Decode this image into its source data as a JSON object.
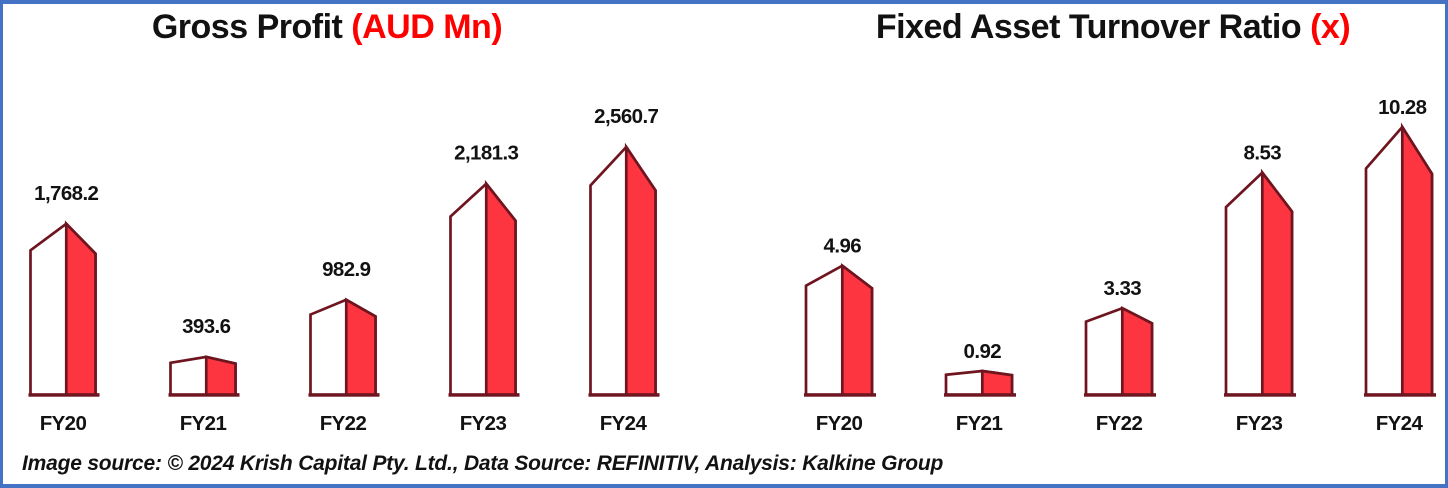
{
  "frame": {
    "border_color": "#4472C4",
    "background": "#FFFFFF"
  },
  "colors": {
    "bar_fill": "#FD3540",
    "bar_front": "#FFFFFF",
    "bar_outline": "#6E1520",
    "title_accent": "#FF0000",
    "text": "#121212"
  },
  "titles": [
    {
      "main": "Gross Profit ",
      "suffix": "(AUD Mn)"
    },
    {
      "main": "Fixed Asset Turnover Ratio ",
      "suffix": "(x)"
    }
  ],
  "footer": {
    "text": "Image source: © 2024 Krish Capital Pty. Ltd., Data Source: REFINITIV, Analysis: Kalkine Group"
  },
  "chart_data": [
    {
      "type": "bar",
      "title": "Gross Profit (AUD Mn)",
      "unit": "AUD Mn",
      "categories": [
        "FY20",
        "FY21",
        "FY22",
        "FY23",
        "FY24"
      ],
      "values": [
        1768.2,
        393.6,
        982.9,
        2181.3,
        2560.7
      ],
      "value_labels": [
        "1,768.2",
        "393.6",
        "982.9",
        "2,181.3",
        "2,560.7"
      ],
      "xlabel": "",
      "ylabel": "",
      "ylim": [
        0,
        2800
      ],
      "grid": false,
      "legend": false,
      "bar_style": "3d peaked column: white front face, red side face, dark maroon outline, data labels above peaks"
    },
    {
      "type": "bar",
      "title": "Fixed Asset Turnover Ratio (x)",
      "unit": "x",
      "categories": [
        "FY20",
        "FY21",
        "FY22",
        "FY23",
        "FY24"
      ],
      "values": [
        4.96,
        0.92,
        3.33,
        8.53,
        10.28
      ],
      "value_labels": [
        "4.96",
        "0.92",
        "3.33",
        "8.53",
        "10.28"
      ],
      "xlabel": "",
      "ylabel": "",
      "ylim": [
        0,
        11.5
      ],
      "grid": false,
      "legend": false,
      "bar_style": "3d peaked column: white front face, red side face, dark maroon outline, data labels above peaks"
    }
  ]
}
